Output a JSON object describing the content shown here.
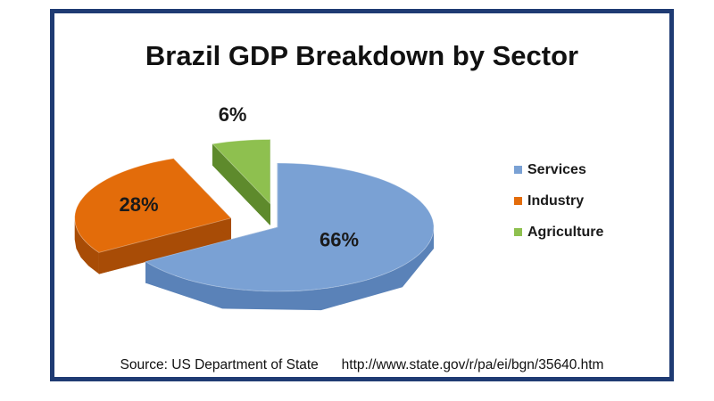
{
  "chart_data": {
    "type": "pie",
    "title": "Brazil GDP Breakdown by Sector",
    "categories": [
      "Services",
      "Industry",
      "Agriculture"
    ],
    "values": [
      66,
      28,
      6
    ],
    "labels": [
      "66%",
      "28%",
      "6%"
    ],
    "colors": [
      "#7aa1d4",
      "#e36c0a",
      "#8ec04f"
    ],
    "side_colors": [
      "#5a82b8",
      "#a84c06",
      "#5e8a2c"
    ],
    "legend_position": "right",
    "three_d": true,
    "exploded": true
  },
  "source": {
    "label": "Source: US Department of State",
    "url": "http://www.state.gov/r/pa/ei/bgn/35640.htm"
  }
}
